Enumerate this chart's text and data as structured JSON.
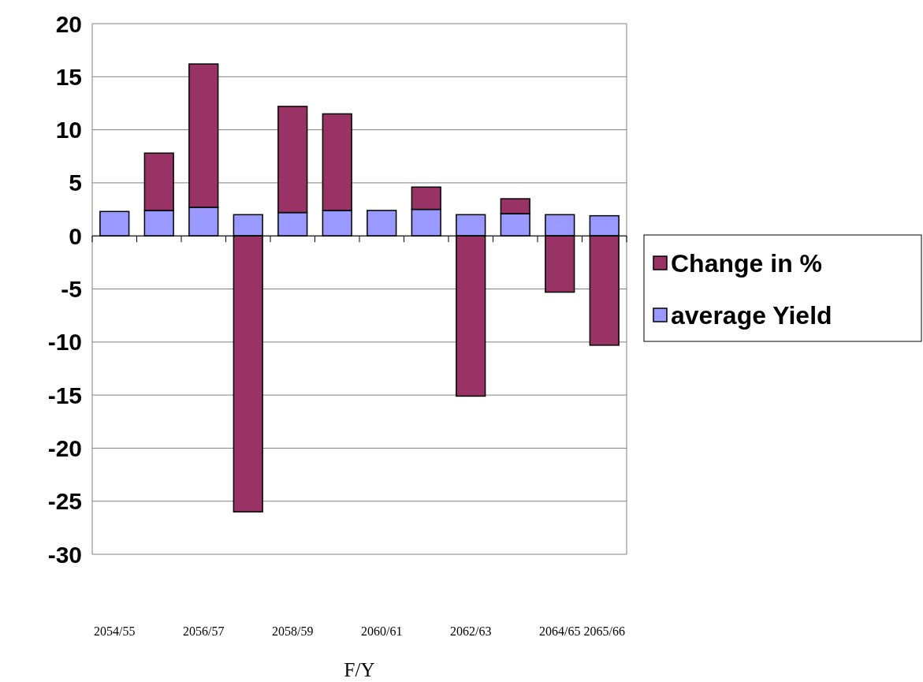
{
  "chart_data": {
    "type": "bar",
    "stacked": true,
    "xlabel": "F/Y",
    "categories": [
      "2054/55",
      null,
      "2056/57",
      null,
      "2058/59",
      null,
      "2060/61",
      null,
      "2062/63",
      null,
      "2064/65",
      "2065/66"
    ],
    "series": [
      {
        "name": "average Yield",
        "color": "#9999ff",
        "values": [
          2.3,
          2.4,
          2.7,
          2.0,
          2.2,
          2.4,
          2.4,
          2.5,
          2.0,
          2.1,
          2.0,
          1.9
        ]
      },
      {
        "name": "Change in %",
        "color": "#993366",
        "values": [
          0,
          5.4,
          13.5,
          -26.0,
          10.0,
          9.1,
          0,
          2.1,
          -15.1,
          1.4,
          -5.3,
          -10.3
        ]
      }
    ],
    "ylim": [
      -30,
      20
    ],
    "yticks": [
      -30,
      -25,
      -20,
      -15,
      -10,
      -5,
      0,
      5,
      10,
      15,
      20
    ],
    "grid": "y",
    "legend": "right"
  }
}
